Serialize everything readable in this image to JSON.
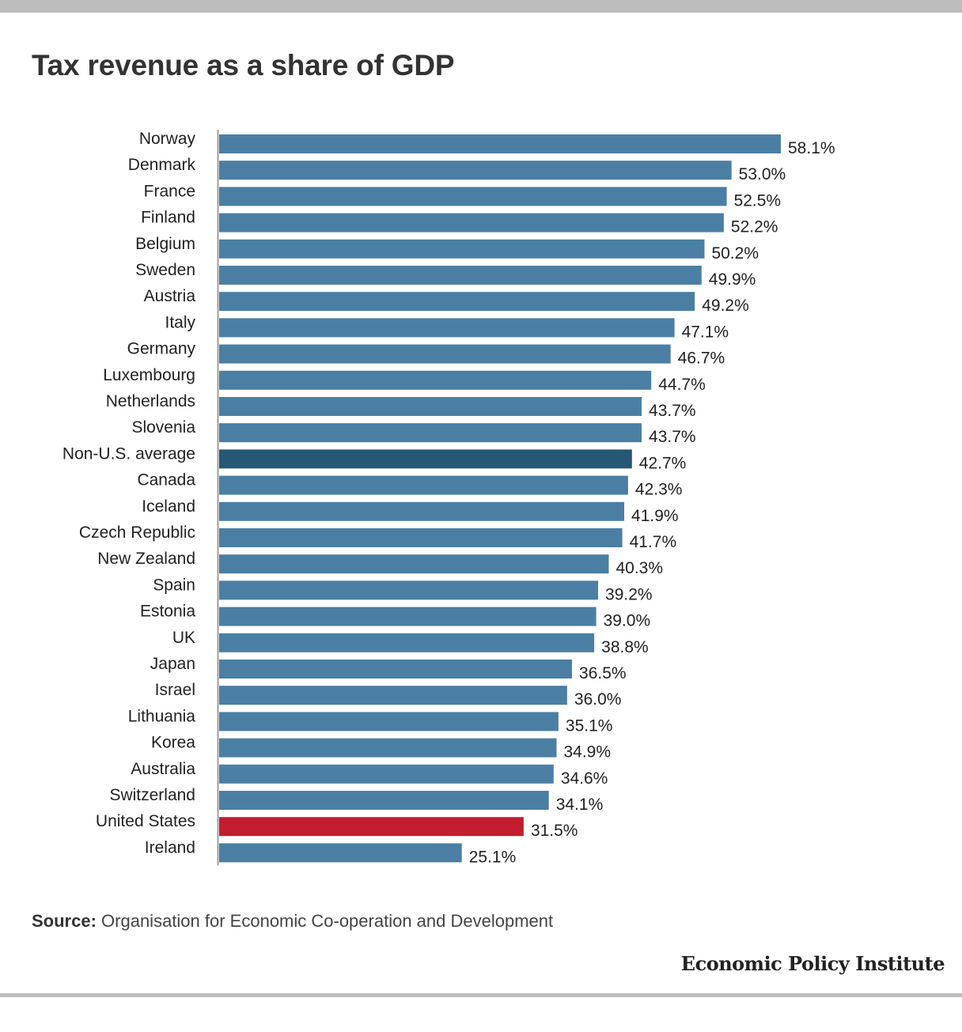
{
  "title": "Tax revenue as a share of GDP",
  "source": {
    "label": "Source:",
    "text": " Organisation for Economic Co-operation and Development"
  },
  "publisher": "Economic Policy Institute",
  "colors": {
    "default_bar": "#4a7fa3",
    "average_bar": "#245874",
    "us_bar": "#c21d2e",
    "axis_line": "#9e9e9e",
    "label_text": "#222222"
  },
  "chart_data": {
    "type": "bar",
    "orientation": "horizontal",
    "value_suffix": "%",
    "categories": [
      "Norway",
      "Denmark",
      "France",
      "Finland",
      "Belgium",
      "Sweden",
      "Austria",
      "Italy",
      "Germany",
      "Luxembourg",
      "Netherlands",
      "Slovenia",
      "Non-U.S. average",
      "Canada",
      "Iceland",
      "Czech Republic",
      "New Zealand",
      "Spain",
      "Estonia",
      "UK",
      "Japan",
      "Israel",
      "Lithuania",
      "Korea",
      "Australia",
      "Switzerland",
      "United States",
      "Ireland"
    ],
    "values": [
      58.1,
      53.0,
      52.5,
      52.2,
      50.2,
      49.9,
      49.2,
      47.1,
      46.7,
      44.7,
      43.7,
      43.7,
      42.7,
      42.3,
      41.9,
      41.7,
      40.3,
      39.2,
      39.0,
      38.8,
      36.5,
      36.0,
      35.1,
      34.9,
      34.6,
      34.1,
      31.5,
      25.1
    ],
    "highlight": {
      "Non-U.S. average": "average_bar",
      "United States": "us_bar"
    },
    "xlim": [
      0,
      58.1
    ],
    "grid": false,
    "legend": "none"
  }
}
